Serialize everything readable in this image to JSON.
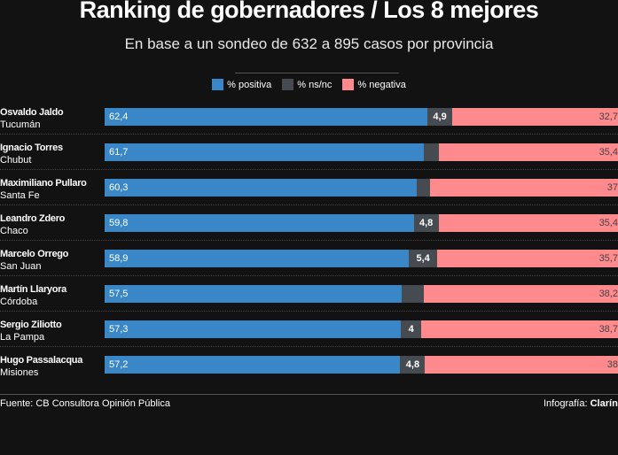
{
  "title": "Ranking de gobernadores / Los 8 mejores",
  "subtitle": "En base a un sondeo de 632 a 895 casos por provincia",
  "footer": {
    "source": "Fuente: CB Consultora Opinión Pública",
    "credit_label": "Infografía:",
    "credit_brand": "Clarín"
  },
  "chart_data": {
    "type": "bar",
    "orientation": "horizontal",
    "stacked": true,
    "xlim": [
      0,
      100
    ],
    "legend_position": "top",
    "series": [
      {
        "name": "% positiva",
        "color": "#3a87c8"
      },
      {
        "name": "% ns/nc",
        "color": "#454b50"
      },
      {
        "name": "% negativa",
        "color": "#fe8a8e"
      }
    ],
    "rows": [
      {
        "name": "Osvaldo Jaldo",
        "province": "Tucumán",
        "positiva": 62.4,
        "positiva_label": "62,4",
        "nsnc": 4.9,
        "nsnc_label": "4,9",
        "negativa": 32.7,
        "negativa_label": "32,7"
      },
      {
        "name": "Ignacio Torres",
        "province": "Chubut",
        "positiva": 61.7,
        "positiva_label": "61,7",
        "nsnc": 2.9,
        "nsnc_label": "",
        "negativa": 35.4,
        "negativa_label": "35,4"
      },
      {
        "name": "Maximiliano Pullaro",
        "province": "Santa Fe",
        "positiva": 60.3,
        "positiva_label": "60,3",
        "nsnc": 2.7,
        "nsnc_label": "",
        "negativa": 37,
        "negativa_label": "37"
      },
      {
        "name": "Leandro Zdero",
        "province": "Chaco",
        "positiva": 59.8,
        "positiva_label": "59,8",
        "nsnc": 4.8,
        "nsnc_label": "4,8",
        "negativa": 35.4,
        "negativa_label": "35,4"
      },
      {
        "name": "Marcelo Orrego",
        "province": "San Juan",
        "positiva": 58.9,
        "positiva_label": "58,9",
        "nsnc": 5.4,
        "nsnc_label": "5,4",
        "negativa": 35.7,
        "negativa_label": "35,7"
      },
      {
        "name": "Martín Llaryora",
        "province": "Córdoba",
        "positiva": 57.5,
        "positiva_label": "57,5",
        "nsnc": 4.3,
        "nsnc_label": "",
        "negativa": 38.2,
        "negativa_label": "38,2"
      },
      {
        "name": "Sergio Ziliotto",
        "province": "La Pampa",
        "positiva": 57.3,
        "positiva_label": "57,3",
        "nsnc": 4,
        "nsnc_label": "4",
        "negativa": 38.7,
        "negativa_label": "38,7"
      },
      {
        "name": "Hugo Passalacqua",
        "province": "Misiones",
        "positiva": 57.2,
        "positiva_label": "57,2",
        "nsnc": 4.8,
        "nsnc_label": "4,8",
        "negativa": 38,
        "negativa_label": "38"
      }
    ]
  }
}
